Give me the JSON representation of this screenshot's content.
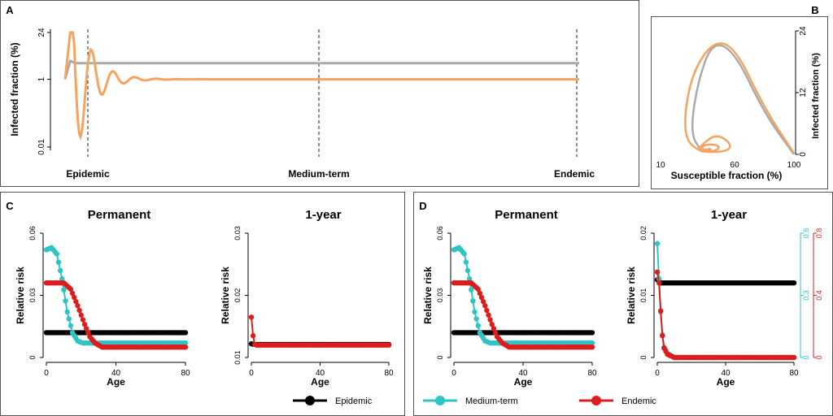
{
  "chart_data": [
    {
      "panel": "A",
      "type": "line",
      "ylabel": "Infected fraction (%)",
      "yscale": "log",
      "yticks": [
        "0.01",
        "1",
        "24"
      ],
      "phases": [
        "Epidemic",
        "Medium-term",
        "Endemic"
      ],
      "series": [
        {
          "color": "#a9a9a9",
          "description_points": [
            [
              0,
              1.0
            ],
            [
              1,
              3.5
            ],
            [
              2,
              3.0
            ],
            [
              3,
              3.0
            ],
            [
              100,
              3.0
            ]
          ]
        },
        {
          "color": "#f4a460",
          "description_points": [
            [
              0,
              1.0
            ],
            [
              1,
              24
            ],
            [
              3,
              0.008
            ],
            [
              5,
              4.0
            ],
            [
              7,
              0.2
            ],
            [
              9,
              2.2
            ],
            [
              11,
              0.5
            ],
            [
              14,
              1.4
            ],
            [
              17,
              0.8
            ],
            [
              22,
              1.1
            ],
            [
              100,
              1.0
            ]
          ]
        }
      ]
    },
    {
      "panel": "B",
      "type": "line",
      "xlabel": "Susceptible fraction (%)",
      "ylabel": "Infected fraction (%)",
      "xticks": [
        "10",
        "60",
        "100"
      ],
      "yticks": [
        "0",
        "12",
        "24"
      ],
      "series": [
        {
          "color": "#a9a9a9",
          "points": [
            [
              100,
              0
            ],
            [
              80,
              8
            ],
            [
              60,
              20
            ],
            [
              45,
              22
            ],
            [
              35,
              14
            ],
            [
              30,
              4
            ],
            [
              38,
              0.5
            ]
          ]
        },
        {
          "color": "#f4a460",
          "points": [
            [
              100,
              0.2
            ],
            [
              80,
              9
            ],
            [
              60,
              21
            ],
            [
              45,
              22
            ],
            [
              30,
              15
            ],
            [
              25,
              4
            ],
            [
              35,
              0.4
            ],
            [
              55,
              0.5
            ],
            [
              58,
              2
            ],
            [
              48,
              4
            ],
            [
              38,
              2
            ],
            [
              35,
              0.5
            ],
            [
              48,
              0.6
            ],
            [
              50,
              1.8
            ],
            [
              40,
              2
            ],
            [
              37,
              1
            ],
            [
              45,
              0.8
            ],
            [
              42,
              1.2
            ]
          ]
        }
      ]
    },
    {
      "panel": "C",
      "title": "Permanent",
      "type": "line",
      "xlabel": "Age",
      "ylabel": "Relative risk",
      "xticks": [
        "0",
        "40",
        "80"
      ],
      "yticks": [
        "0",
        "0.03",
        "0.06"
      ],
      "series": [
        {
          "name": "Epidemic",
          "color": "#000000",
          "x": [
            0,
            80
          ],
          "y": [
            0.012,
            0.012
          ]
        },
        {
          "name": "Medium-term",
          "color": "#2fc4c4",
          "x": [
            0,
            3,
            6,
            9,
            12,
            15,
            18,
            21,
            25,
            30,
            80
          ],
          "y": [
            0.052,
            0.053,
            0.05,
            0.038,
            0.022,
            0.012,
            0.008,
            0.007,
            0.007,
            0.007,
            0.007
          ]
        },
        {
          "name": "Endemic",
          "color": "#dd1c1c",
          "x": [
            0,
            5,
            10,
            14,
            18,
            22,
            25,
            28,
            32,
            36,
            80
          ],
          "y": [
            0.036,
            0.036,
            0.036,
            0.033,
            0.025,
            0.016,
            0.01,
            0.007,
            0.005,
            0.005,
            0.005
          ]
        }
      ]
    },
    {
      "panel": "C",
      "title": "1-year",
      "type": "line",
      "xlabel": "Age",
      "ylabel": "Relative risk",
      "xticks": [
        "0",
        "40",
        "80"
      ],
      "yticks": [
        "0.01",
        "0.02",
        "0.03"
      ],
      "series": [
        {
          "name": "Epidemic",
          "color": "#000000",
          "x": [
            0,
            2,
            80
          ],
          "y": [
            0.0122,
            0.0121,
            0.0121
          ]
        },
        {
          "name": "Endemic",
          "color": "#dd1c1c",
          "x": [
            0,
            1,
            2,
            3,
            4,
            80
          ],
          "y": [
            0.0165,
            0.0135,
            0.0121,
            0.012,
            0.012,
            0.012
          ]
        }
      ],
      "legend": [
        "Epidemic"
      ]
    },
    {
      "panel": "D",
      "title": "Permanent",
      "type": "line",
      "xlabel": "Age",
      "ylabel": "Relative risk",
      "xticks": [
        "0",
        "40",
        "80"
      ],
      "yticks": [
        "0",
        "0.03",
        "0.06"
      ],
      "series": [
        {
          "name": "Epidemic",
          "color": "#000000",
          "x": [
            0,
            80
          ],
          "y": [
            0.012,
            0.012
          ]
        },
        {
          "name": "Medium-term",
          "color": "#2fc4c4",
          "x": [
            0,
            3,
            6,
            9,
            12,
            15,
            18,
            21,
            25,
            30,
            80
          ],
          "y": [
            0.052,
            0.053,
            0.05,
            0.038,
            0.022,
            0.012,
            0.008,
            0.007,
            0.007,
            0.007,
            0.007
          ]
        },
        {
          "name": "Endemic",
          "color": "#dd1c1c",
          "x": [
            0,
            5,
            10,
            14,
            18,
            22,
            25,
            28,
            32,
            36,
            80
          ],
          "y": [
            0.036,
            0.036,
            0.036,
            0.033,
            0.025,
            0.016,
            0.01,
            0.007,
            0.005,
            0.005,
            0.005
          ]
        }
      ],
      "legend": [
        "Medium-term",
        "Endemic"
      ]
    },
    {
      "panel": "D",
      "title": "1-year",
      "type": "line",
      "xlabel": "Age",
      "ylabel": "Relative risk",
      "xticks": [
        "0",
        "40",
        "80"
      ],
      "yticks": [
        "0",
        "0.01",
        "0.02"
      ],
      "right_axes": [
        {
          "color": "#2fc4c4",
          "ticks": [
            "0",
            "0.3",
            "0.6"
          ]
        },
        {
          "color": "#dd1c1c",
          "ticks": [
            "0",
            "0.4",
            "0.8"
          ]
        }
      ],
      "series": [
        {
          "name": "Epidemic",
          "color": "#000000",
          "x": [
            0,
            1,
            2,
            80
          ],
          "y": [
            0.0125,
            0.0122,
            0.012,
            0.012
          ]
        },
        {
          "name": "Medium-term",
          "color": "#2fc4c4",
          "axis": "right1",
          "x": [
            0,
            1,
            2,
            3,
            4,
            6,
            8,
            10,
            80
          ],
          "y": [
            0.55,
            0.38,
            0.22,
            0.11,
            0.05,
            0.02,
            0.01,
            0.0,
            0.0
          ]
        },
        {
          "name": "Endemic",
          "color": "#dd1c1c",
          "axis": "right2",
          "x": [
            0,
            1,
            2,
            3,
            4,
            6,
            8,
            10,
            80
          ],
          "y": [
            0.55,
            0.48,
            0.3,
            0.14,
            0.06,
            0.02,
            0.01,
            0.0,
            0.0
          ]
        }
      ]
    }
  ],
  "panel_labels": [
    "A",
    "B",
    "C",
    "D"
  ],
  "legend_items": [
    {
      "name": "Epidemic",
      "color": "#000000"
    },
    {
      "name": "Medium-term",
      "color": "#2fc4c4"
    },
    {
      "name": "Endemic",
      "color": "#dd1c1c"
    }
  ]
}
